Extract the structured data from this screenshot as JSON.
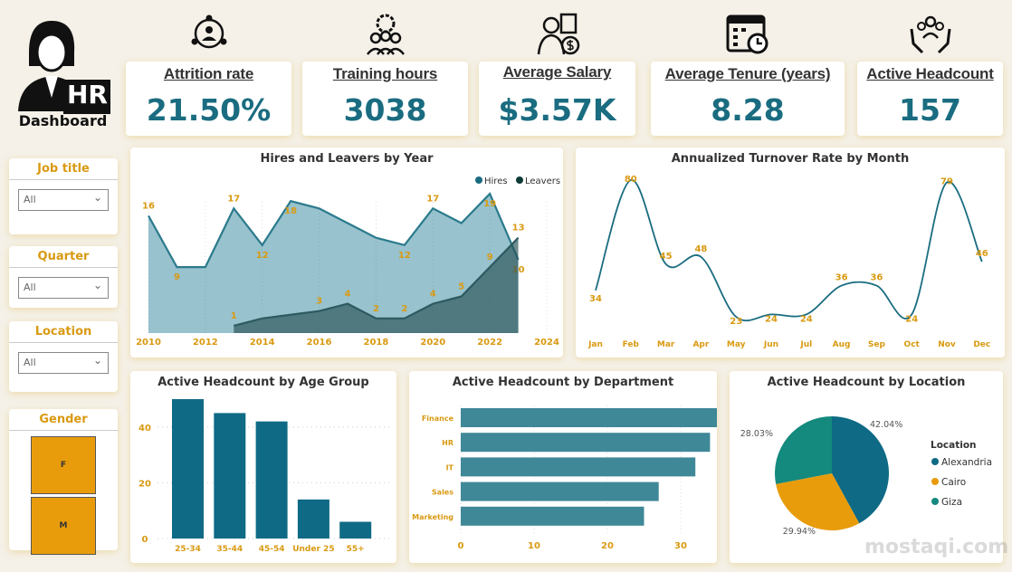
{
  "logo": {
    "badge": "HR",
    "title": "Dashboard"
  },
  "kpis": [
    {
      "label": "Attrition rate",
      "value": "21.50%",
      "icon": "network-person-icon"
    },
    {
      "label": "Training hours",
      "value": "3038",
      "icon": "team-gear-icon"
    },
    {
      "label": "Average Salary",
      "value": "$3.57K",
      "icon": "salary-person-icon"
    },
    {
      "label": "Average Tenure (years)",
      "value": "8.28",
      "icon": "calendar-clock-icon"
    },
    {
      "label": "Active Headcount",
      "value": "157",
      "icon": "hands-people-icon"
    }
  ],
  "slicers": {
    "job_title": {
      "label": "Job title",
      "value": "All"
    },
    "quarter": {
      "label": "Quarter",
      "value": "All"
    },
    "location": {
      "label": "Location",
      "value": "All"
    },
    "gender": {
      "label": "Gender",
      "options": [
        "F",
        "M"
      ]
    }
  },
  "colors": {
    "accent": "#1a6c80",
    "label": "#d99a12",
    "orange": "#e89c0c",
    "teal": "#14897e"
  },
  "chart_data": [
    {
      "type": "area",
      "title": "Hires and Leavers by Year",
      "legend_position": "top-right",
      "x_ticks": [
        2010,
        2012,
        2014,
        2016,
        2018,
        2020,
        2022,
        2024
      ],
      "xlim": [
        2010,
        2024
      ],
      "series": [
        {
          "name": "Hires",
          "x": [
            2010,
            2011,
            2012,
            2013,
            2014,
            2015,
            2016,
            2017,
            2018,
            2019,
            2020,
            2021,
            2022,
            2023
          ],
          "values": [
            16,
            9,
            9,
            17,
            12,
            18,
            17,
            15,
            13,
            12,
            17,
            15,
            19,
            10
          ],
          "labels": [
            "16",
            "9",
            "",
            "17",
            "12",
            "18",
            "",
            "",
            "",
            "12",
            "17",
            "",
            "19",
            "10"
          ]
        },
        {
          "name": "Leavers",
          "x": [
            2013,
            2014,
            2015,
            2016,
            2017,
            2018,
            2019,
            2020,
            2021,
            2022,
            2023
          ],
          "values": [
            1,
            2,
            2.5,
            3,
            4,
            2,
            2,
            4,
            5,
            9,
            13
          ],
          "labels": [
            "1",
            "",
            "",
            "3",
            "4",
            "2",
            "2",
            "4",
            "5",
            "9",
            "13"
          ]
        }
      ]
    },
    {
      "type": "line",
      "title": "Annualized Turnover Rate by Month",
      "categories": [
        "Jan",
        "Feb",
        "Mar",
        "Apr",
        "May",
        "Jun",
        "Jul",
        "Aug",
        "Sep",
        "Oct",
        "Nov",
        "Dec"
      ],
      "values": [
        34,
        80,
        45,
        48,
        23,
        24,
        24,
        36,
        36,
        24,
        79,
        46
      ]
    },
    {
      "type": "bar",
      "title": "Active Headcount by Age Group",
      "categories": [
        "25-34",
        "35-44",
        "45-54",
        "Under 25",
        "55+"
      ],
      "values": [
        50,
        45,
        42,
        14,
        6
      ],
      "y_ticks": [
        0,
        20,
        40
      ],
      "ylim": [
        0,
        52
      ]
    },
    {
      "type": "bar",
      "orientation": "horizontal",
      "title": "Active Headcount by Department",
      "categories": [
        "Finance",
        "HR",
        "IT",
        "Sales",
        "Marketing"
      ],
      "values": [
        39,
        34,
        32,
        27,
        25
      ],
      "x_ticks": [
        0,
        10,
        20,
        30,
        40
      ],
      "xlim": [
        0,
        40
      ]
    },
    {
      "type": "pie",
      "title": "Active Headcount by Location",
      "legend_title": "Location",
      "legend_position": "right",
      "categories": [
        "Alexandria",
        "Cairo",
        "Giza"
      ],
      "values": [
        42.04,
        29.94,
        28.03
      ],
      "labels": [
        "42.04%",
        "29.94%",
        "28.03%"
      ],
      "colors": [
        "#0f6a85",
        "#e89c0c",
        "#14897e"
      ]
    }
  ],
  "watermark": "mostaqi.com"
}
